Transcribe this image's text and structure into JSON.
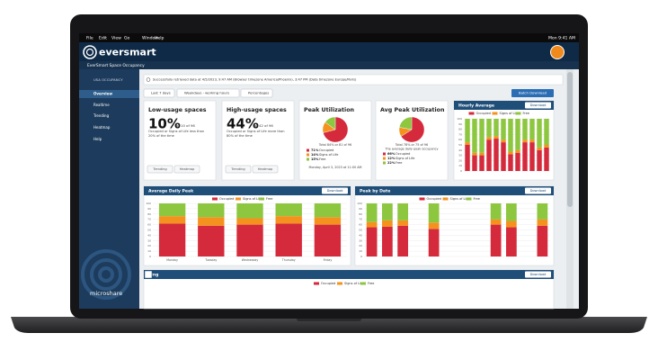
{
  "menu_bar": {
    "items": [
      "File",
      "Edit",
      "View",
      "Go",
      "Window",
      "Help"
    ],
    "clock": "Mon 9:41 AM"
  },
  "app": {
    "logo": "eversmart",
    "title": "EverSmart Space Occupancy"
  },
  "sidebar": {
    "section": "USA OCCUPANCY",
    "items": [
      "Overview",
      "Realtime",
      "Trending",
      "Heatmap",
      "Help"
    ],
    "footer": "microshare"
  },
  "banner": "Successfully retrieved data at 4/5/2023, 9:47 AM (Browser timezone America/Phoenix), 3:47 PM (Data timezone Europe/Paris)",
  "filters": [
    "Last 7 days",
    "Weekdays - working hours",
    "Percentages"
  ],
  "batch_download": "Batch Download",
  "cards": [
    {
      "title": "Low-usage spaces",
      "value": "10%",
      "sub": "or 10 of 96",
      "description": "Occupied or Signs of Life less than 20% of the time",
      "buttons": [
        "Trending",
        "Heatmap"
      ]
    },
    {
      "title": "High-usage spaces",
      "value": "44%",
      "sub": "or 42 of 96",
      "description": "Occupied or Signs of Life more than 80% of the time",
      "buttons": [
        "Trending",
        "Heatmap"
      ]
    }
  ],
  "pies": [
    {
      "type": "pie",
      "title": "Peak Utilization",
      "subtitle": "Total 84% or 81 of 96",
      "categories": [
        "Occupied",
        "Signs of Life",
        "Free"
      ],
      "values": [
        71,
        14,
        15
      ],
      "value_labels": [
        "71%",
        "14%",
        "15%"
      ],
      "colors": [
        "#d42a3c",
        "#f5921e",
        "#8dc63f"
      ],
      "footnote": "Monday, April 3, 2023 at 11:00 AM"
    },
    {
      "type": "pie",
      "title": "Avg Peak Utilization",
      "subtitle": "Total 78% or 75 of 96",
      "note": "The average daily peak occupancy",
      "categories": [
        "Occupied",
        "Signs of Life",
        "Free"
      ],
      "values": [
        66,
        12,
        22
      ],
      "value_labels": [
        "66%",
        "12%",
        "22%"
      ],
      "colors": [
        "#d42a3c",
        "#f5921e",
        "#8dc63f"
      ]
    }
  ],
  "charts": [
    {
      "type": "bar",
      "stacked": true,
      "title": "Hourly Average",
      "button": "Download",
      "categories": [
        null,
        null,
        null,
        null,
        null,
        null,
        null,
        null,
        null,
        null,
        null,
        null
      ],
      "series": [
        {
          "name": "Occupied",
          "color": "#d42a3c",
          "values": [
            50,
            30,
            30,
            60,
            62,
            55,
            32,
            35,
            55,
            55,
            40,
            45
          ]
        },
        {
          "name": "Signs of Life",
          "color": "#f5921e",
          "values": [
            5,
            5,
            5,
            5,
            5,
            5,
            5,
            5,
            5,
            5,
            5,
            5
          ]
        },
        {
          "name": "Free",
          "color": "#8dc63f",
          "values": [
            45,
            65,
            65,
            35,
            33,
            40,
            63,
            60,
            40,
            40,
            55,
            50
          ]
        }
      ],
      "ylim": [
        0,
        100
      ],
      "yticks": [
        0,
        10,
        20,
        30,
        40,
        50,
        60,
        70,
        80,
        90,
        100
      ]
    },
    {
      "type": "bar",
      "stacked": true,
      "title": "Average Daily Peak",
      "button": "Download",
      "categories": [
        "Monday",
        "Tuesday",
        "Wednesday",
        "Thursday",
        "Friday"
      ],
      "series": [
        {
          "name": "Occupied",
          "color": "#d42a3c",
          "values": [
            62,
            58,
            60,
            62,
            60
          ]
        },
        {
          "name": "Signs of Life",
          "color": "#f5921e",
          "values": [
            14,
            16,
            12,
            14,
            14
          ]
        },
        {
          "name": "Free",
          "color": "#8dc63f",
          "values": [
            24,
            26,
            28,
            24,
            26
          ]
        }
      ],
      "ylim": [
        0,
        100
      ],
      "yticks": [
        0,
        10,
        20,
        30,
        40,
        50,
        60,
        70,
        80,
        90,
        100
      ]
    },
    {
      "type": "bar",
      "stacked": true,
      "title": "Peak by Date",
      "button": "Download",
      "categories": [
        null,
        null,
        null,
        null,
        null,
        null,
        null,
        null,
        null,
        null,
        null,
        null
      ],
      "series": [
        {
          "name": "Occupied",
          "color": "#d42a3c",
          "values": [
            55,
            56,
            58,
            null,
            52,
            null,
            null,
            null,
            60,
            55,
            null,
            58
          ]
        },
        {
          "name": "Signs of Life",
          "color": "#f5921e",
          "values": [
            10,
            12,
            10,
            null,
            12,
            null,
            null,
            null,
            10,
            12,
            null,
            12
          ]
        },
        {
          "name": "Free",
          "color": "#8dc63f",
          "values": [
            35,
            32,
            32,
            null,
            36,
            null,
            null,
            null,
            30,
            33,
            null,
            30
          ]
        }
      ],
      "ylim": [
        0,
        100
      ],
      "yticks": [
        0,
        10,
        20,
        30,
        40,
        50,
        60,
        70,
        80,
        90,
        100
      ]
    }
  ],
  "bottom_panel": {
    "title": "ding",
    "button": "Download",
    "legend": [
      "Occupied",
      "Signs of Life",
      "Free"
    ]
  }
}
